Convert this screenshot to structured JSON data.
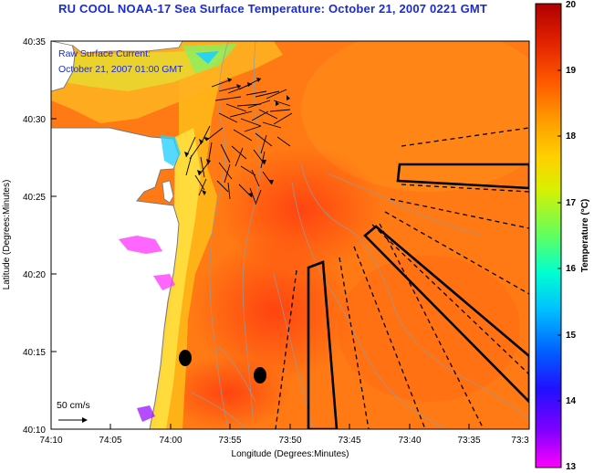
{
  "title": "RU COOL  NOAA-17  Sea Surface Temperature:  October 21, 2007 0221 GMT",
  "overlay": {
    "current_label": "Raw Surface Current:",
    "current_time": "October 21, 2007 01:00 GMT",
    "scale_label": "50 cm/s"
  },
  "axes": {
    "xlabel": "Longitude (Degrees:Minutes)",
    "ylabel": "Latitude (Degrees:Minutes)",
    "x_ticks": [
      "74:10",
      "74:05",
      "74:00",
      "73:55",
      "73:50",
      "73:45",
      "73:40",
      "73:35",
      "73:3"
    ],
    "y_ticks": [
      "40:35",
      "40:30",
      "40:25",
      "40:20",
      "40:15",
      "40:10"
    ]
  },
  "colorbar": {
    "label": "Temperature (°C)",
    "min": 13,
    "max": 20,
    "ticks": [
      "20",
      "19",
      "18",
      "17",
      "16",
      "15",
      "14",
      "13"
    ],
    "colors": [
      "#b00000",
      "#e02000",
      "#ff5a00",
      "#ff9a00",
      "#ffd000",
      "#d8f000",
      "#60ff60",
      "#00ffd0",
      "#00c0ff",
      "#0060ff",
      "#2010ff",
      "#8000ff",
      "#ff00ff"
    ]
  },
  "colors": {
    "title": "#1a2bd6",
    "land": "#ffffff",
    "ocean_warm": "#ff5a10",
    "ocean_mid": "#ff8a10",
    "nearshore": "#ffd020"
  }
}
